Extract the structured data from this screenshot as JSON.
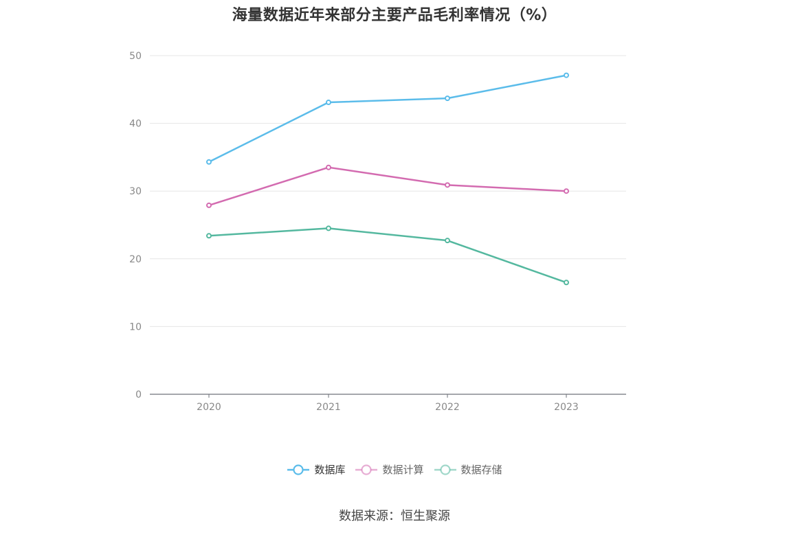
{
  "title": "海量数据近年来部分主要产品毛利率情况（%）",
  "source": "数据来源：恒生聚源",
  "chart_data": {
    "type": "line",
    "categories": [
      "2020",
      "2021",
      "2022",
      "2023"
    ],
    "ylim": [
      0,
      50
    ],
    "yticks": [
      0,
      10,
      20,
      30,
      40,
      50
    ],
    "grid": true,
    "legend_position": "bottom",
    "series": [
      {
        "name": "数据库",
        "color": "#5bbcea",
        "values": [
          34.3,
          43.1,
          43.7,
          47.1
        ]
      },
      {
        "name": "数据计算",
        "color": "#d36bb0",
        "values": [
          27.9,
          33.5,
          30.9,
          30.0
        ]
      },
      {
        "name": "数据存储",
        "color": "#54b89f",
        "values": [
          23.4,
          24.5,
          22.7,
          16.5
        ]
      }
    ]
  }
}
